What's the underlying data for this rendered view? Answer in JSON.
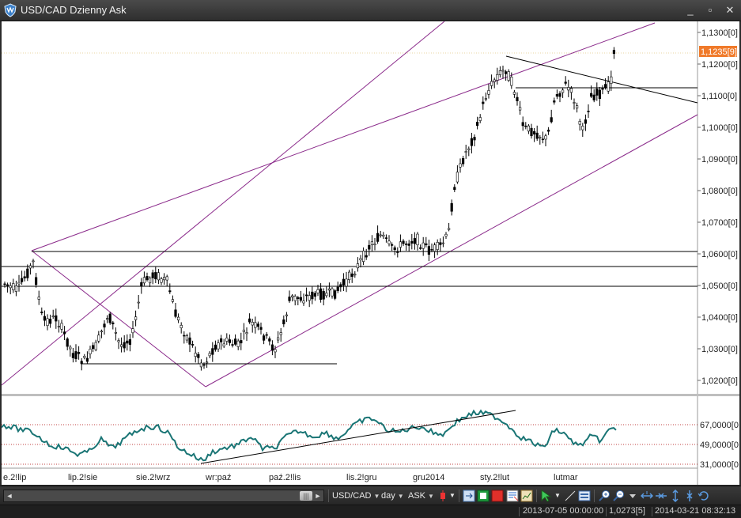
{
  "window": {
    "title": "USD/CAD Dzienny Ask",
    "minimize_symbol": "_",
    "restore_symbol": "▫",
    "close_symbol": "✕"
  },
  "chart": {
    "bid_label": "1,1235[9]",
    "price_ticks": [
      "1,1300[0]",
      "1,1200[0]",
      "1,1100[0]",
      "1,1000[0]",
      "1,0900[0]",
      "1,0800[0]",
      "1,0700[0]",
      "1,0600[0]",
      "1,0500[0]",
      "1,0400[0]",
      "1,0300[0]",
      "1,0200[0]"
    ],
    "oscillator_ticks": [
      "67,0000[0",
      "49,0000[0",
      "31,0000[0"
    ],
    "date_labels": [
      "e.2!lip",
      "lip.2!sie",
      "sie.2!wrz",
      "wr:paź",
      "paź.2!lis",
      "lis.2!gru",
      "gru2014",
      "sty.2!lut",
      "lutmar"
    ]
  },
  "toolbar": {
    "instrument": "USD/CAD",
    "period": "day",
    "side": "ASK",
    "scroll_left_icon": "◄",
    "scroll_thumb_icon": "|||",
    "scroll_right_icon": "►"
  },
  "status": {
    "cursor_time": "2013-07-05 00:00:00",
    "cursor_price": "1,0273[5]",
    "server_time": "2014-03-21 08:32:13"
  },
  "colors": {
    "candle": "#000000",
    "channel": "#8b2b8b",
    "oscillator": "#1a7575",
    "bid_label_bg": "#f07a2a",
    "dotted_levels": "#c04040"
  }
}
